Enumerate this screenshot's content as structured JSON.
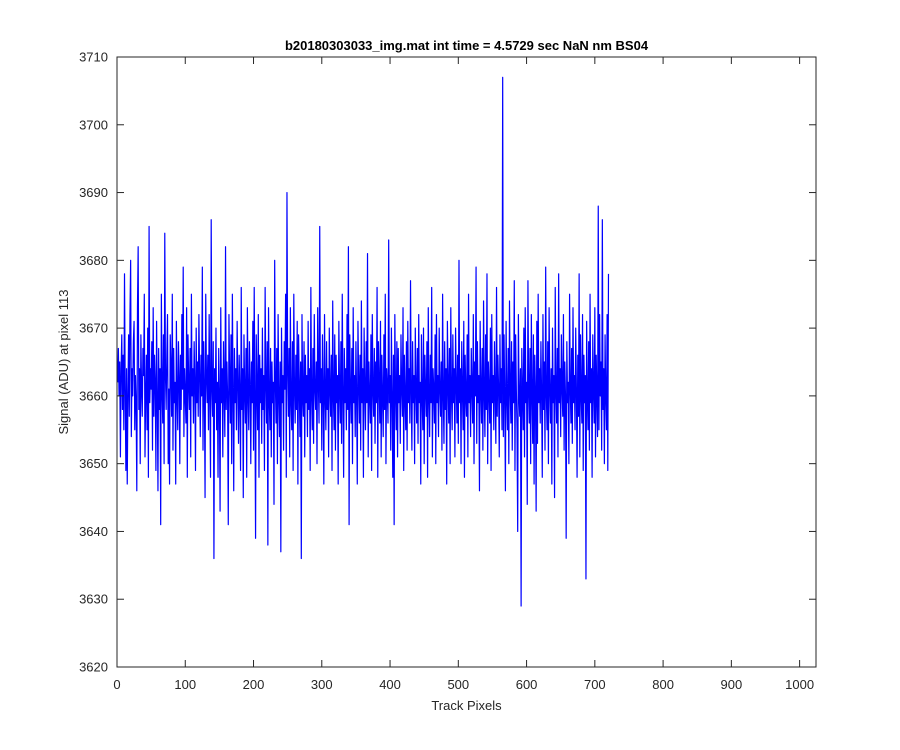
{
  "chart_data": {
    "type": "line",
    "title": "b20180303033_img.mat int time = 4.5729 sec  NaN nm BS04",
    "xlabel": "Track Pixels",
    "ylabel": "Signal (ADU) at pixel 113",
    "xlim": [
      0,
      1024
    ],
    "ylim": [
      3620,
      3710
    ],
    "xticks": [
      0,
      100,
      200,
      300,
      400,
      500,
      600,
      700,
      800,
      900,
      1000
    ],
    "yticks": [
      3620,
      3630,
      3640,
      3650,
      3660,
      3670,
      3680,
      3690,
      3700,
      3710
    ],
    "grid": false,
    "series": [
      {
        "color": "#0000ff",
        "x_start": 1,
        "x_step": 1,
        "values": [
          3662,
          3667,
          3660,
          3665,
          3651,
          3664,
          3669,
          3658,
          3666,
          3655,
          3678,
          3661,
          3649,
          3664,
          3647,
          3660,
          3669,
          3657,
          3672,
          3680,
          3654,
          3664,
          3660,
          3668,
          3671,
          3655,
          3663,
          3659,
          3646,
          3673,
          3682,
          3658,
          3664,
          3650,
          3669,
          3661,
          3657,
          3667,
          3663,
          3675,
          3651,
          3660,
          3666,
          3655,
          3670,
          3648,
          3685,
          3659,
          3664,
          3661,
          3668,
          3652,
          3673,
          3657,
          3666,
          3662,
          3649,
          3671,
          3660,
          3646,
          3667,
          3658,
          3664,
          3641,
          3675,
          3661,
          3656,
          3669,
          3650,
          3684,
          3663,
          3658,
          3666,
          3672,
          3650,
          3661,
          3647,
          3669,
          3664,
          3657,
          3675,
          3652,
          3667,
          3659,
          3662,
          3647,
          3671,
          3660,
          3655,
          3668,
          3663,
          3650,
          3666,
          3658,
          3672,
          3661,
          3679,
          3654,
          3664,
          3660,
          3656,
          3673,
          3648,
          3669,
          3662,
          3658,
          3667,
          3651,
          3675,
          3660,
          3664,
          3656,
          3668,
          3662,
          3649,
          3670,
          3659,
          3665,
          3657,
          3672,
          3663,
          3654,
          3666,
          3660,
          3679,
          3652,
          3668,
          3661,
          3645,
          3675,
          3663,
          3659,
          3666,
          3655,
          3672,
          3660,
          3648,
          3686,
          3661,
          3657,
          3668,
          3636,
          3664,
          3659,
          3670,
          3655,
          3662,
          3648,
          3667,
          3660,
          3643,
          3673,
          3659,
          3664,
          3651,
          3668,
          3661,
          3654,
          3682,
          3658,
          3665,
          3660,
          3641,
          3672,
          3663,
          3656,
          3669,
          3650,
          3675,
          3661,
          3646,
          3667,
          3659,
          3664,
          3655,
          3671,
          3662,
          3653,
          3666,
          3660,
          3649,
          3676,
          3658,
          3664,
          3645,
          3669,
          3661,
          3656,
          3667,
          3648,
          3673,
          3660,
          3655,
          3668,
          3662,
          3650,
          3665,
          3659,
          3671,
          3652,
          3676,
          3660,
          3639,
          3669,
          3661,
          3655,
          3672,
          3648,
          3666,
          3659,
          3664,
          3653,
          3670,
          3658,
          3663,
          3649,
          3676,
          3662,
          3656,
          3668,
          3638,
          3673,
          3660,
          3655,
          3667,
          3651,
          3665,
          3659,
          3662,
          3644,
          3680,
          3662,
          3656,
          3667,
          3650,
          3672,
          3660,
          3654,
          3665,
          3637,
          3670,
          3659,
          3663,
          3652,
          3668,
          3661,
          3675,
          3648,
          3690,
          3664,
          3657,
          3667,
          3651,
          3673,
          3659,
          3655,
          3668,
          3649,
          3675,
          3661,
          3656,
          3666,
          3658,
          3671,
          3647,
          3669,
          3662,
          3654,
          3665,
          3636,
          3672,
          3660,
          3657,
          3668,
          3651,
          3666,
          3659,
          3663,
          3654,
          3671,
          3658,
          3664,
          3649,
          3676,
          3660,
          3655,
          3667,
          3653,
          3672,
          3661,
          3658,
          3665,
          3650,
          3673,
          3662,
          3656,
          3685,
          3659,
          3664,
          3652,
          3669,
          3661,
          3647,
          3672,
          3660,
          3655,
          3668,
          3658,
          3664,
          3651,
          3670,
          3661,
          3657,
          3666,
          3649,
          3674,
          3660,
          3655,
          3669,
          3652,
          3666,
          3659,
          3663,
          3647,
          3671,
          3661,
          3656,
          3668,
          3653,
          3675,
          3660,
          3648,
          3667,
          3659,
          3664,
          3655,
          3672,
          3658,
          3682,
          3641,
          3669,
          3661,
          3656,
          3667,
          3650,
          3673,
          3659,
          3663,
          3654,
          3668,
          3660,
          3647,
          3671,
          3662,
          3656,
          3666,
          3652,
          3674,
          3659,
          3664,
          3648,
          3670,
          3661,
          3655,
          3668,
          3659,
          3681,
          3651,
          3665,
          3660,
          3656,
          3669,
          3649,
          3672,
          3661,
          3657,
          3667,
          3653,
          3665,
          3659,
          3676,
          3648,
          3668,
          3662,
          3656,
          3671,
          3651,
          3666,
          3660,
          3654,
          3669,
          3658,
          3675,
          3650,
          3664,
          3661,
          3656,
          3683,
          3659,
          3663,
          3652,
          3670,
          3660,
          3648,
          3666,
          3641,
          3672,
          3661,
          3655,
          3668,
          3651,
          3667,
          3659,
          3663,
          3653,
          3669,
          3661,
          3657,
          3673,
          3649,
          3666,
          3660,
          3655,
          3668,
          3652,
          3671,
          3659,
          3664,
          3656,
          3677,
          3660,
          3652,
          3668,
          3659,
          3663,
          3650,
          3670,
          3661,
          3656,
          3667,
          3653,
          3672,
          3659,
          3662,
          3647,
          3669,
          3660,
          3655,
          3670,
          3650,
          3666,
          3661,
          3657,
          3668,
          3648,
          3673,
          3660,
          3654,
          3666,
          3659,
          3676,
          3651,
          3664,
          3661,
          3656,
          3669,
          3650,
          3672,
          3659,
          3663,
          3654,
          3670,
          3661,
          3657,
          3665,
          3652,
          3675,
          3660,
          3653,
          3668,
          3658,
          3664,
          3647,
          3671,
          3662,
          3656,
          3667,
          3650,
          3673,
          3660,
          3655,
          3669,
          3659,
          3664,
          3651,
          3670,
          3662,
          3656,
          3666,
          3653,
          3680,
          3659,
          3664,
          3650,
          3668,
          3661,
          3655,
          3671,
          3648,
          3666,
          3660,
          3657,
          3669,
          3651,
          3675,
          3659,
          3663,
          3654,
          3667,
          3661,
          3656,
          3672,
          3650,
          3665,
          3660,
          3679,
          3653,
          3668,
          3659,
          3663,
          3646,
          3671,
          3661,
          3656,
          3667,
          3652,
          3674,
          3660,
          3654,
          3669,
          3658,
          3678,
          3650,
          3665,
          3661,
          3656,
          3670,
          3649,
          3672,
          3659,
          3663,
          3655,
          3668,
          3660,
          3653,
          3676,
          3657,
          3666,
          3661,
          3651,
          3669,
          3659,
          3664,
          3655,
          3707,
          3654,
          3669,
          3660,
          3646,
          3671,
          3660,
          3655,
          3667,
          3650,
          3674,
          3661,
          3656,
          3668,
          3652,
          3665,
          3659,
          3677,
          3649,
          3669,
          3661,
          3655,
          3640,
          3672,
          3660,
          3657,
          3664,
          3629,
          3667,
          3661,
          3655,
          3670,
          3651,
          3673,
          3659,
          3662,
          3644,
          3677,
          3661,
          3656,
          3667,
          3650,
          3672,
          3660,
          3653,
          3669,
          3647,
          3666,
          3661,
          3643,
          3671,
          3653,
          3675,
          3659,
          3664,
          3656,
          3668,
          3660,
          3648,
          3672,
          3658,
          3665,
          3652,
          3679,
          3660,
          3655,
          3668,
          3650,
          3673,
          3661,
          3656,
          3664,
          3647,
          3670,
          3659,
          3663,
          3645,
          3676,
          3661,
          3656,
          3667,
          3651,
          3678,
          3659,
          3664,
          3654,
          3669,
          3661,
          3657,
          3672,
          3652,
          3665,
          3660,
          3639,
          3668,
          3659,
          3662,
          3650,
          3675,
          3661,
          3656,
          3667,
          3653,
          3673,
          3659,
          3663,
          3655,
          3670,
          3661,
          3648,
          3666,
          3657,
          3678,
          3651,
          3669,
          3660,
          3656,
          3672,
          3649,
          3666,
          3659,
          3663,
          3633,
          3671,
          3660,
          3655,
          3668,
          3652,
          3675,
          3659,
          3664,
          3648,
          3669,
          3661,
          3656,
          3673,
          3651,
          3666,
          3660,
          3654,
          3688,
          3655,
          3672,
          3660,
          3665,
          3652,
          3686,
          3658,
          3664,
          3650,
          3669,
          3660,
          3655,
          3672,
          3649,
          3678
        ]
      }
    ]
  }
}
